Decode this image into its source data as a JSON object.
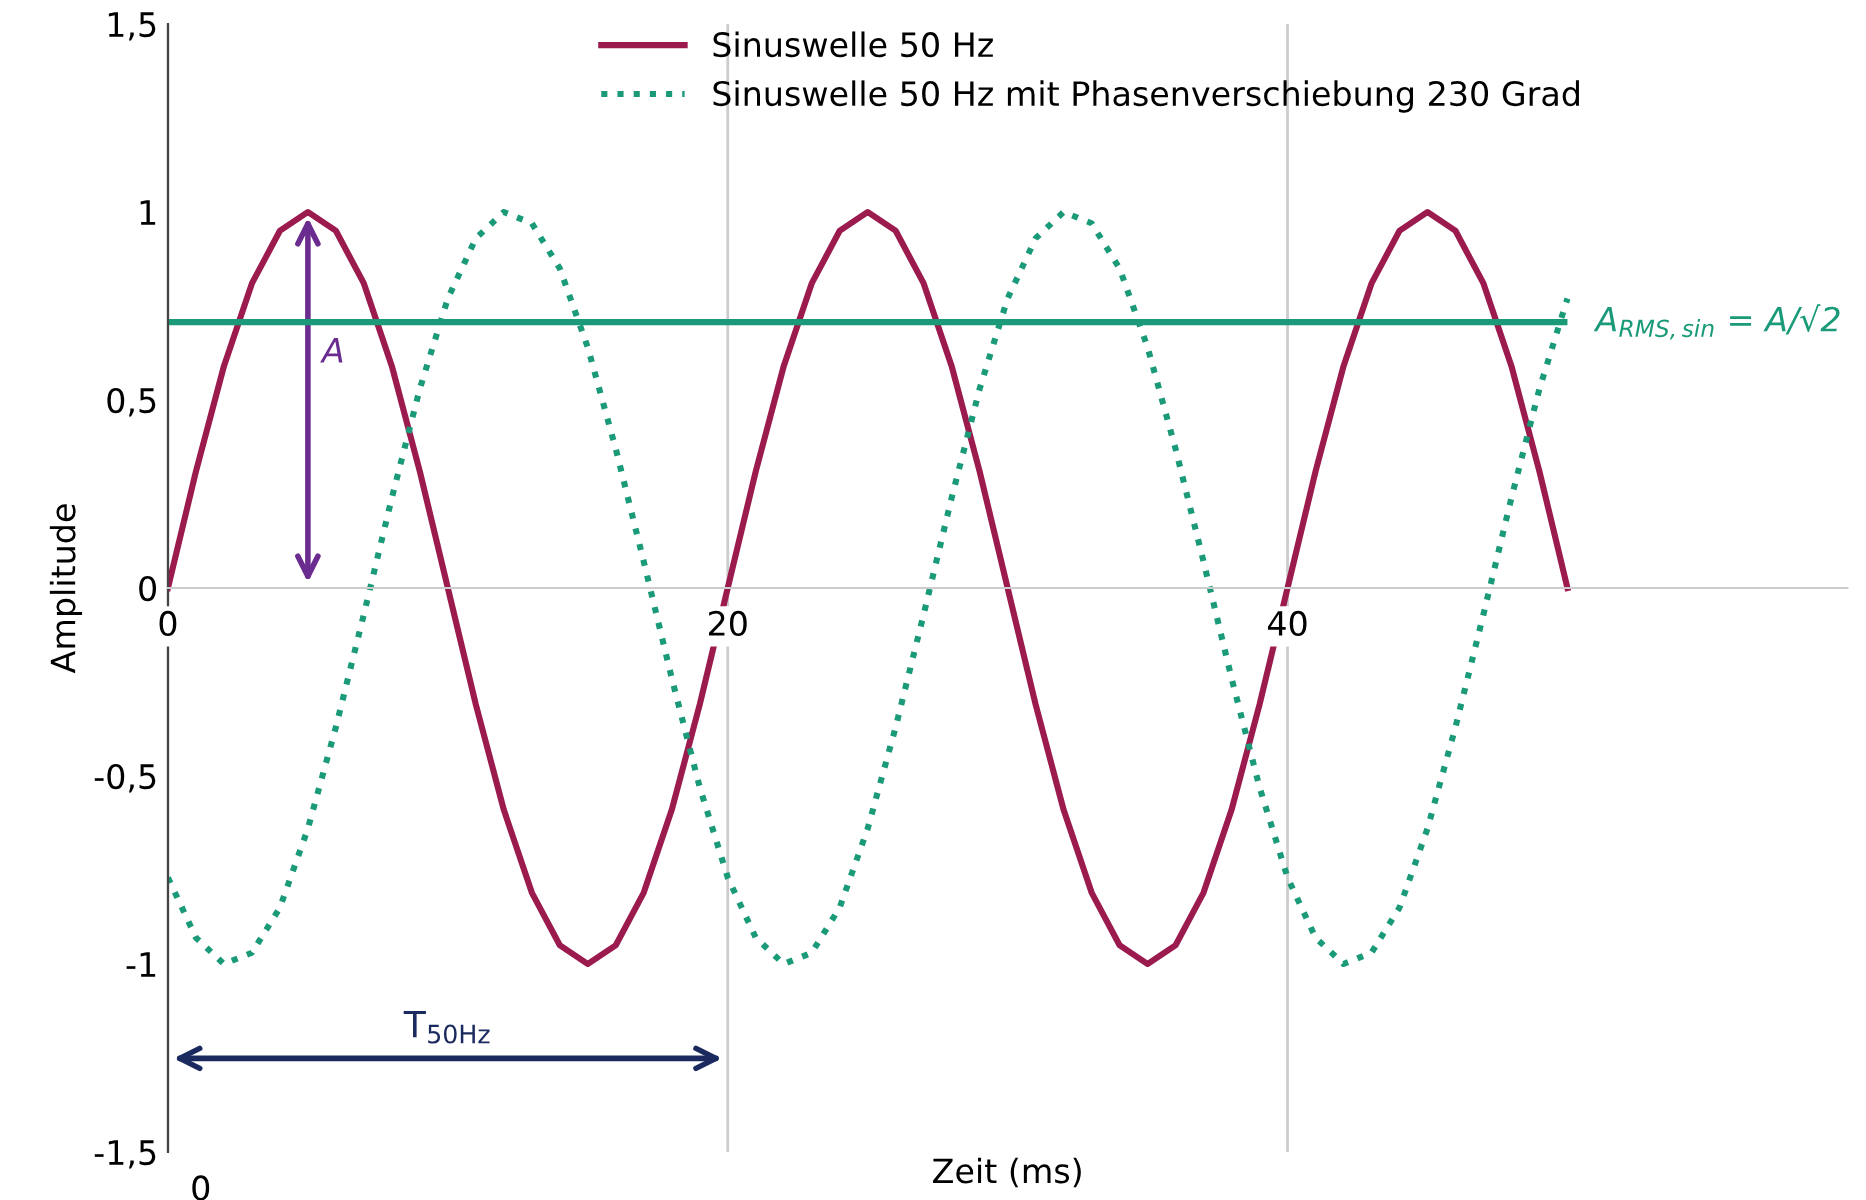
{
  "chart_data": {
    "type": "line",
    "xlabel": "Zeit (ms)",
    "ylabel": "Amplitude",
    "x": [
      0,
      1,
      2,
      3,
      4,
      5,
      6,
      7,
      8,
      9,
      10,
      11,
      12,
      13,
      14,
      15,
      16,
      17,
      18,
      19,
      20,
      21,
      22,
      23,
      24,
      25,
      26,
      27,
      28,
      29,
      30,
      31,
      32,
      33,
      34,
      35,
      36,
      37,
      38,
      39,
      40,
      41,
      42,
      43,
      44,
      45,
      46,
      47,
      48,
      49,
      50
    ],
    "series": [
      {
        "name": "Sinuswelle 50 Hz",
        "color": "#9b1b4e",
        "line_style": "solid",
        "values": [
          0,
          0.31,
          0.59,
          0.81,
          0.95,
          1,
          0.95,
          0.81,
          0.59,
          0.31,
          0,
          -0.31,
          -0.59,
          -0.81,
          -0.95,
          -1,
          -0.95,
          -0.81,
          -0.59,
          -0.31,
          0,
          0.31,
          0.59,
          0.81,
          0.95,
          1,
          0.95,
          0.81,
          0.59,
          0.31,
          0,
          -0.31,
          -0.59,
          -0.81,
          -0.95,
          -1,
          -0.95,
          -0.81,
          -0.59,
          -0.31,
          0,
          0.31,
          0.59,
          0.81,
          0.95,
          1,
          0.95,
          0.81,
          0.59,
          0.31,
          0
        ]
      },
      {
        "name": "Sinuswelle 50 Hz mit Phasenverschiebung 230 Grad",
        "color": "#1a9a78",
        "line_style": "dotted",
        "values": [
          -0.77,
          -0.93,
          -1,
          -0.97,
          -0.85,
          -0.64,
          -0.37,
          -0.07,
          0.24,
          0.53,
          0.77,
          0.93,
          1,
          0.97,
          0.85,
          0.64,
          0.37,
          0.07,
          -0.24,
          -0.53,
          -0.77,
          -0.93,
          -1,
          -0.97,
          -0.85,
          -0.64,
          -0.37,
          -0.07,
          0.24,
          0.53,
          0.77,
          0.93,
          1,
          0.97,
          0.85,
          0.64,
          0.37,
          0.07,
          -0.24,
          -0.53,
          -0.77,
          -0.93,
          -1,
          -0.97,
          -0.85,
          -0.64,
          -0.37,
          -0.07,
          0.24,
          0.53,
          0.77
        ]
      }
    ],
    "xlim": [
      0,
      60
    ],
    "xticks": [
      0,
      20,
      40
    ],
    "ylim": [
      -1.5,
      1.5
    ],
    "yticks": [
      {
        "value": -1.5,
        "label": "-1,5"
      },
      -1,
      {
        "value": -0.5,
        "label": "-0,5"
      },
      0,
      {
        "value": 0.5,
        "label": "0,5"
      },
      1,
      {
        "value": 1.5,
        "label": "1,5"
      }
    ],
    "ref_lines": [
      {
        "axis": "y",
        "value": 0.707,
        "label": "A$_{RMS,sin}$ = A/√2",
        "color": "#1a9a78"
      }
    ],
    "annotations": [
      "A",
      "T$_{50Hz}$",
      "0"
    ],
    "grid": "x",
    "legend": "top"
  }
}
